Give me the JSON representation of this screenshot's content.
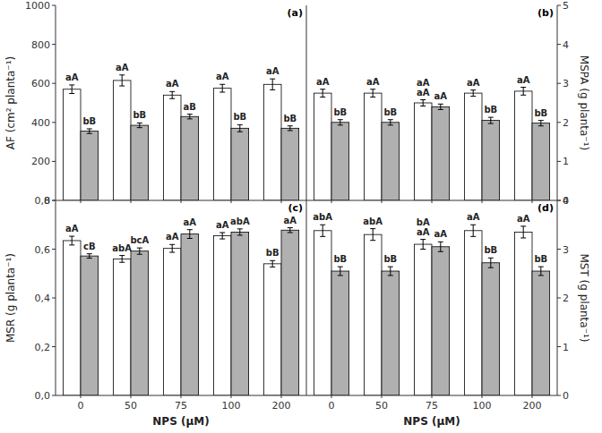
{
  "chart_data": [
    {
      "type": "bar",
      "title": "(a)",
      "ylabel": "AF (cm² planta⁻¹)",
      "categories": [
        "0",
        "50",
        "75",
        "100",
        "200"
      ],
      "tick_labels": "y",
      "ylim": [
        0,
        1000
      ],
      "yticks": [
        0,
        200,
        400,
        600,
        800,
        1000
      ],
      "series": [
        {
          "color": "#FFFFFF",
          "values": [
            570,
            615,
            540,
            575,
            595
          ],
          "errors": [
            22,
            28,
            18,
            20,
            28
          ],
          "annotations": [
            "aA",
            "aA",
            "aA",
            "aA",
            "aA"
          ]
        },
        {
          "color": "#B0B0B0",
          "values": [
            355,
            385,
            430,
            370,
            370
          ],
          "errors": [
            12,
            12,
            12,
            18,
            12
          ],
          "annotations": [
            "bB",
            "bB",
            "aB",
            "bB",
            "bB"
          ]
        }
      ]
    },
    {
      "type": "bar",
      "title": "(b)",
      "y2label": "MSPA (g planta⁻¹)",
      "categories": [
        "0",
        "50",
        "75",
        "100",
        "200"
      ],
      "tick_labels": "y",
      "y2lim": [
        0,
        5
      ],
      "y2ticks": [
        0,
        1,
        2,
        3,
        4,
        5
      ],
      "series": [
        {
          "axis": "y2",
          "color": "#FFFFFF",
          "values": [
            2.75,
            2.75,
            2.5,
            2.75,
            2.8
          ],
          "errors": [
            0.1,
            0.1,
            0.08,
            0.08,
            0.1
          ],
          "annotations": [
            "aA",
            "aA",
            "aA\naA",
            "aA",
            "aA"
          ]
        },
        {
          "axis": "y2",
          "color": "#B0B0B0",
          "values": [
            2.0,
            2.0,
            2.4,
            2.05,
            1.98
          ],
          "errors": [
            0.07,
            0.07,
            0.07,
            0.08,
            0.07
          ],
          "annotations": [
            "bB",
            "bB",
            "aA",
            "bB",
            "bB"
          ]
        }
      ]
    },
    {
      "type": "bar",
      "title": "(c)",
      "ylabel": "MSR (g planta⁻¹)",
      "xlabel": "NPS (μM)",
      "categories": [
        "0",
        "50",
        "75",
        "100",
        "200"
      ],
      "ylim": [
        0.0,
        0.8
      ],
      "yticks": [
        {
          "value": 0.0,
          "label": "0,0"
        },
        {
          "value": 0.2,
          "label": "0,2"
        },
        {
          "value": 0.4,
          "label": "0,4"
        },
        {
          "value": 0.6,
          "label": "0,6"
        },
        {
          "value": 0.8,
          "label": "0,8"
        }
      ],
      "series": [
        {
          "color": "#FFFFFF",
          "values": [
            0.635,
            0.56,
            0.603,
            0.655,
            0.54
          ],
          "errors": [
            0.018,
            0.014,
            0.016,
            0.013,
            0.013
          ],
          "annotations": [
            "aA",
            "abA",
            "aA",
            "aA",
            "bB"
          ]
        },
        {
          "color": "#B0B0B0",
          "values": [
            0.572,
            0.592,
            0.662,
            0.67,
            0.678
          ],
          "errors": [
            0.009,
            0.013,
            0.018,
            0.013,
            0.01
          ],
          "annotations": [
            "cB",
            "bcA",
            "aA",
            "abA",
            "aA"
          ]
        }
      ]
    },
    {
      "type": "bar",
      "title": "(d)",
      "y2label": "MST (g planta⁻¹)",
      "xlabel": "NPS (μM)",
      "categories": [
        "0",
        "50",
        "75",
        "100",
        "200"
      ],
      "y2lim": [
        0,
        4
      ],
      "y2ticks": [
        0,
        1,
        2,
        3,
        4
      ],
      "series": [
        {
          "axis": "y2",
          "color": "#FFFFFF",
          "values": [
            3.38,
            3.3,
            3.1,
            3.38,
            3.35
          ],
          "errors": [
            0.12,
            0.12,
            0.1,
            0.12,
            0.12
          ],
          "annotations": [
            "abA",
            "abA",
            "bA\naA",
            "aA",
            "aA"
          ]
        },
        {
          "axis": "y2",
          "color": "#B0B0B0",
          "values": [
            2.55,
            2.55,
            3.05,
            2.72,
            2.55
          ],
          "errors": [
            0.09,
            0.09,
            0.1,
            0.1,
            0.09
          ],
          "annotations": [
            "bB",
            "bB",
            "aA",
            "bB",
            "bB"
          ]
        }
      ]
    }
  ]
}
